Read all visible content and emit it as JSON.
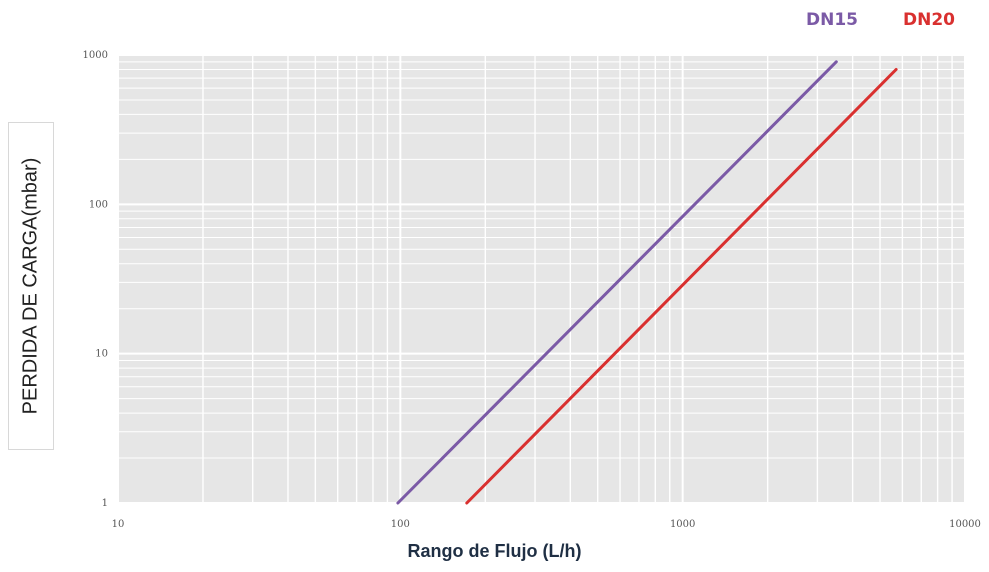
{
  "chart_data": {
    "type": "line",
    "xscale": "log",
    "yscale": "log",
    "xlim": [
      10,
      10000
    ],
    "ylim": [
      1,
      1000
    ],
    "xlabel": "Rango de Flujo (L/h)",
    "ylabel": "PERDIDA DE CARGA(mbar)",
    "x_ticks": [
      "10",
      "100",
      "1000",
      "10000"
    ],
    "y_ticks": [
      "1",
      "10",
      "100",
      "1000"
    ],
    "grid": true,
    "legend_position": "top-right",
    "series": [
      {
        "name": "DN15",
        "color": "#7b5aa6",
        "x": [
          98,
          3500
        ],
        "y": [
          1,
          900
        ]
      },
      {
        "name": "DN20",
        "color": "#d9302f",
        "x": [
          172,
          5700
        ],
        "y": [
          1,
          800
        ]
      }
    ]
  }
}
